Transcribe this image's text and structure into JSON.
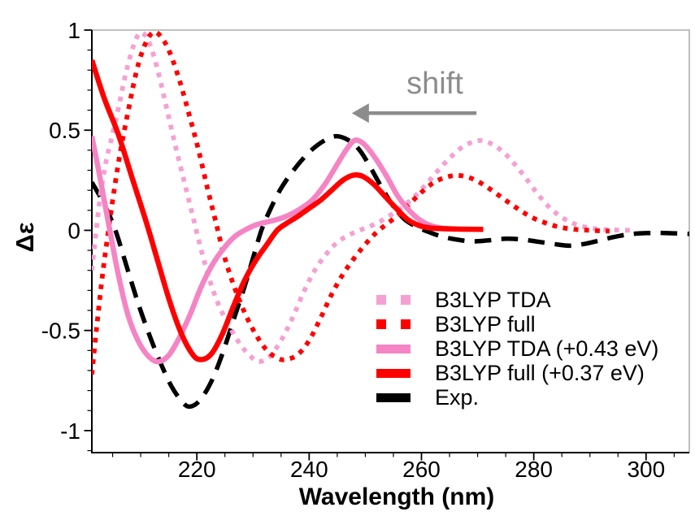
{
  "chart_data": {
    "type": "line",
    "title": "",
    "xlabel": "Wavelength (nm)",
    "ylabel": "Δε",
    "xlim": [
      201.3,
      307.7
    ],
    "ylim": [
      -1.11,
      1.0
    ],
    "x_ticks": [
      220,
      240,
      260,
      280,
      300
    ],
    "x_tick_labels": [
      "220",
      "240",
      "260",
      "280",
      "300"
    ],
    "x_minor_step": 5,
    "y_ticks": [
      1,
      0.5,
      0,
      -0.5,
      -1
    ],
    "y_tick_labels": [
      "1",
      "0.5",
      "0",
      "-0.5",
      "-1"
    ],
    "y_minor_step": 0.1,
    "grid": false,
    "legend_position": "inside-lower-right",
    "annotation": {
      "text": "shift",
      "color": "#8c8c8c",
      "arrow": {
        "tail_x": 269.8,
        "tip_x": 247.6,
        "y": 0.585
      }
    },
    "axis_colors": {
      "main_spines": "#000000",
      "top_right_spines": "#9a9a9a"
    },
    "draw_order": [
      4,
      0,
      1,
      2,
      3
    ],
    "series": [
      {
        "name": "B3LYP TDA",
        "color": "#f5a0d2",
        "style": "dotted",
        "points": [
          [
            201.3,
            -0.2
          ],
          [
            202,
            -0.02
          ],
          [
            202.8,
            0.17
          ],
          [
            203.8,
            0.34
          ],
          [
            204.9,
            0.47
          ],
          [
            206.1,
            0.62
          ],
          [
            207.4,
            0.79
          ],
          [
            208.7,
            0.92
          ],
          [
            209.8,
            0.985
          ],
          [
            210.9,
            0.97
          ],
          [
            212,
            0.9
          ],
          [
            213.3,
            0.77
          ],
          [
            214.7,
            0.6
          ],
          [
            216.2,
            0.42
          ],
          [
            217.7,
            0.25
          ],
          [
            219.2,
            0.08
          ],
          [
            220.7,
            -0.09
          ],
          [
            222.3,
            -0.25
          ],
          [
            224,
            -0.38
          ],
          [
            226,
            -0.49
          ],
          [
            228,
            -0.58
          ],
          [
            230,
            -0.64
          ],
          [
            231.3,
            -0.655
          ],
          [
            233,
            -0.63
          ],
          [
            235,
            -0.55
          ],
          [
            237,
            -0.44
          ],
          [
            239,
            -0.31
          ],
          [
            241,
            -0.2
          ],
          [
            243,
            -0.12
          ],
          [
            245,
            -0.06
          ],
          [
            247,
            -0.025
          ],
          [
            249,
            0
          ],
          [
            251,
            0.022
          ],
          [
            253,
            0.05
          ],
          [
            255,
            0.085
          ],
          [
            257,
            0.125
          ],
          [
            259,
            0.175
          ],
          [
            261,
            0.235
          ],
          [
            263,
            0.3
          ],
          [
            265,
            0.36
          ],
          [
            267,
            0.41
          ],
          [
            269,
            0.44
          ],
          [
            270.8,
            0.448
          ],
          [
            272.6,
            0.43
          ],
          [
            274.6,
            0.39
          ],
          [
            276.6,
            0.33
          ],
          [
            278.6,
            0.26
          ],
          [
            280.6,
            0.185
          ],
          [
            282.6,
            0.12
          ],
          [
            284.6,
            0.072
          ],
          [
            286.6,
            0.04
          ],
          [
            288.6,
            0.02
          ],
          [
            290.6,
            0.009
          ],
          [
            293,
            0.003
          ],
          [
            295.5,
            0.001
          ],
          [
            298,
            0
          ]
        ]
      },
      {
        "name": "B3LYP full",
        "color": "#ff0000",
        "style": "dotted",
        "points": [
          [
            201.3,
            -0.72
          ],
          [
            202.1,
            -0.5
          ],
          [
            203,
            -0.27
          ],
          [
            204,
            -0.05
          ],
          [
            205,
            0.15
          ],
          [
            206.3,
            0.38
          ],
          [
            207.8,
            0.6
          ],
          [
            209.3,
            0.8
          ],
          [
            210.8,
            0.93
          ],
          [
            212.3,
            0.99
          ],
          [
            213.8,
            0.96
          ],
          [
            215.3,
            0.88
          ],
          [
            217,
            0.74
          ],
          [
            218.7,
            0.57
          ],
          [
            220.3,
            0.4
          ],
          [
            221.8,
            0.22
          ],
          [
            223.3,
            0.05
          ],
          [
            224.8,
            -0.12
          ],
          [
            226.5,
            -0.27
          ],
          [
            228.5,
            -0.41
          ],
          [
            230.5,
            -0.52
          ],
          [
            232.5,
            -0.6
          ],
          [
            234.5,
            -0.64
          ],
          [
            236,
            -0.645
          ],
          [
            238,
            -0.62
          ],
          [
            240,
            -0.55
          ],
          [
            242,
            -0.44
          ],
          [
            244,
            -0.32
          ],
          [
            246,
            -0.22
          ],
          [
            248,
            -0.14
          ],
          [
            250,
            -0.07
          ],
          [
            252,
            -0.01
          ],
          [
            254,
            0.035
          ],
          [
            256,
            0.08
          ],
          [
            258,
            0.135
          ],
          [
            260,
            0.19
          ],
          [
            262,
            0.235
          ],
          [
            264,
            0.262
          ],
          [
            266,
            0.274
          ],
          [
            268,
            0.268
          ],
          [
            270,
            0.245
          ],
          [
            272,
            0.21
          ],
          [
            274,
            0.17
          ],
          [
            276,
            0.13
          ],
          [
            278,
            0.092
          ],
          [
            280,
            0.06
          ],
          [
            282,
            0.038
          ],
          [
            284,
            0.02
          ],
          [
            286,
            0.009
          ],
          [
            288,
            0.003
          ],
          [
            290,
            0
          ],
          [
            292,
            -0.003
          ],
          [
            293.5,
            -0.004
          ]
        ]
      },
      {
        "name": "B3LYP TDA (+0.43 eV)",
        "color": "#f584c4",
        "style": "solid",
        "points": [
          [
            201.3,
            0.47
          ],
          [
            202.5,
            0.3
          ],
          [
            203.7,
            0.12
          ],
          [
            204.7,
            -0.03
          ],
          [
            206,
            -0.22
          ],
          [
            207.5,
            -0.4
          ],
          [
            209,
            -0.52
          ],
          [
            210.8,
            -0.61
          ],
          [
            212.8,
            -0.655
          ],
          [
            214.8,
            -0.63
          ],
          [
            216.8,
            -0.54
          ],
          [
            218.8,
            -0.42
          ],
          [
            220.8,
            -0.28
          ],
          [
            222.8,
            -0.17
          ],
          [
            224.8,
            -0.09
          ],
          [
            226.8,
            -0.03
          ],
          [
            228.8,
            0.005
          ],
          [
            230.8,
            0.03
          ],
          [
            233,
            0.045
          ],
          [
            235.5,
            0.065
          ],
          [
            238,
            0.1
          ],
          [
            240.5,
            0.15
          ],
          [
            242.8,
            0.23
          ],
          [
            245,
            0.33
          ],
          [
            246.8,
            0.41
          ],
          [
            248.2,
            0.45
          ],
          [
            249.8,
            0.43
          ],
          [
            251.8,
            0.36
          ],
          [
            253.8,
            0.27
          ],
          [
            255.8,
            0.17
          ],
          [
            257.8,
            0.1
          ],
          [
            259.8,
            0.05
          ],
          [
            261.8,
            0.022
          ],
          [
            264,
            0.01
          ],
          [
            266,
            0.006
          ]
        ]
      },
      {
        "name": "B3LYP full (+0.37 eV)",
        "color": "#ff0000",
        "style": "solid",
        "points": [
          [
            201.3,
            0.85
          ],
          [
            203.5,
            0.66
          ],
          [
            206,
            0.48
          ],
          [
            208.5,
            0.26
          ],
          [
            211,
            0.04
          ],
          [
            213,
            -0.15
          ],
          [
            215,
            -0.34
          ],
          [
            217,
            -0.5
          ],
          [
            219,
            -0.61
          ],
          [
            220.5,
            -0.645
          ],
          [
            222.5,
            -0.62
          ],
          [
            224.5,
            -0.52
          ],
          [
            226.5,
            -0.38
          ],
          [
            228.5,
            -0.25
          ],
          [
            230.5,
            -0.15
          ],
          [
            232.5,
            -0.07
          ],
          [
            234.3,
            0
          ],
          [
            236,
            0.035
          ],
          [
            238,
            0.07
          ],
          [
            240,
            0.11
          ],
          [
            242,
            0.15
          ],
          [
            244,
            0.2
          ],
          [
            246,
            0.25
          ],
          [
            247.8,
            0.275
          ],
          [
            249.5,
            0.27
          ],
          [
            251.5,
            0.23
          ],
          [
            253.5,
            0.17
          ],
          [
            255.5,
            0.11
          ],
          [
            257.5,
            0.055
          ],
          [
            259.5,
            0.025
          ],
          [
            261.5,
            0.012
          ],
          [
            264,
            0.008
          ],
          [
            267,
            0.006
          ],
          [
            271,
            0.005
          ]
        ]
      },
      {
        "name": "Exp.",
        "color": "#000000",
        "style": "dashed",
        "points": [
          [
            201.3,
            0.24
          ],
          [
            203.5,
            0.13
          ],
          [
            205.5,
            0
          ],
          [
            207.5,
            -0.18
          ],
          [
            209.5,
            -0.36
          ],
          [
            211.5,
            -0.52
          ],
          [
            213.5,
            -0.66
          ],
          [
            215.5,
            -0.78
          ],
          [
            217.5,
            -0.86
          ],
          [
            218.8,
            -0.88
          ],
          [
            220.5,
            -0.85
          ],
          [
            222.5,
            -0.76
          ],
          [
            224.5,
            -0.62
          ],
          [
            226.5,
            -0.45
          ],
          [
            228.5,
            -0.28
          ],
          [
            230.2,
            -0.12
          ],
          [
            231.5,
            0
          ],
          [
            233,
            0.1
          ],
          [
            235,
            0.21
          ],
          [
            237.5,
            0.31
          ],
          [
            240,
            0.39
          ],
          [
            242.5,
            0.445
          ],
          [
            244.8,
            0.47
          ],
          [
            247,
            0.45
          ],
          [
            249,
            0.4
          ],
          [
            251,
            0.31
          ],
          [
            253,
            0.21
          ],
          [
            255,
            0.12
          ],
          [
            257,
            0.055
          ],
          [
            259,
            0.02
          ],
          [
            261,
            -0.005
          ],
          [
            263.5,
            -0.03
          ],
          [
            266,
            -0.045
          ],
          [
            269,
            -0.055
          ],
          [
            272,
            -0.05
          ],
          [
            275,
            -0.042
          ],
          [
            278,
            -0.046
          ],
          [
            281,
            -0.058
          ],
          [
            284,
            -0.07
          ],
          [
            286.5,
            -0.077
          ],
          [
            289,
            -0.068
          ],
          [
            291.5,
            -0.052
          ],
          [
            294,
            -0.035
          ],
          [
            296.5,
            -0.022
          ],
          [
            299,
            -0.015
          ],
          [
            302,
            -0.013
          ],
          [
            305,
            -0.015
          ],
          [
            307.7,
            -0.018
          ]
        ]
      }
    ]
  }
}
